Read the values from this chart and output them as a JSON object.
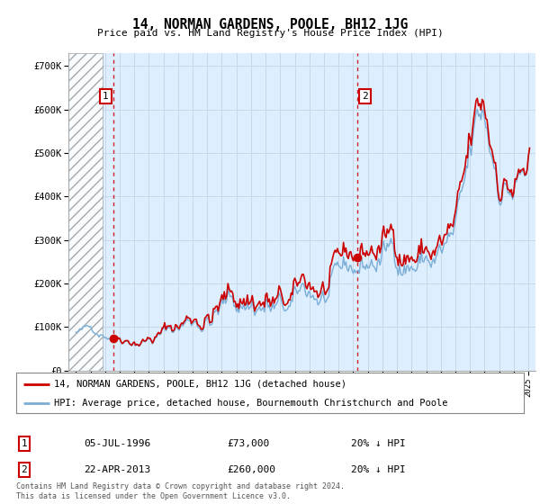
{
  "title": "14, NORMAN GARDENS, POOLE, BH12 1JG",
  "subtitle": "Price paid vs. HM Land Registry's House Price Index (HPI)",
  "ylabel_ticks": [
    "£0",
    "£100K",
    "£200K",
    "£300K",
    "£400K",
    "£500K",
    "£600K",
    "£700K"
  ],
  "ytick_values": [
    0,
    100000,
    200000,
    300000,
    400000,
    500000,
    600000,
    700000
  ],
  "ylim": [
    0,
    730000
  ],
  "xlim_start": 1993.5,
  "xlim_end": 2025.5,
  "hpi_color": "#7aaed6",
  "price_color": "#cc0000",
  "sale1_date": 1996.54,
  "sale1_price": 73000,
  "sale1_label": "1",
  "sale2_date": 2013.3,
  "sale2_price": 260000,
  "sale2_label": "2",
  "legend_line1": "14, NORMAN GARDENS, POOLE, BH12 1JG (detached house)",
  "legend_line2": "HPI: Average price, detached house, Bournemouth Christchurch and Poole",
  "annotation1_date": "05-JUL-1996",
  "annotation1_price": "£73,000",
  "annotation1_pct": "20% ↓ HPI",
  "annotation2_date": "22-APR-2013",
  "annotation2_price": "£260,000",
  "annotation2_pct": "20% ↓ HPI",
  "footer": "Contains HM Land Registry data © Crown copyright and database right 2024.\nThis data is licensed under the Open Government Licence v3.0.",
  "hatch_end": 1995.8,
  "grid_color": "#c8d8e8",
  "background_color": "#ddeeff"
}
